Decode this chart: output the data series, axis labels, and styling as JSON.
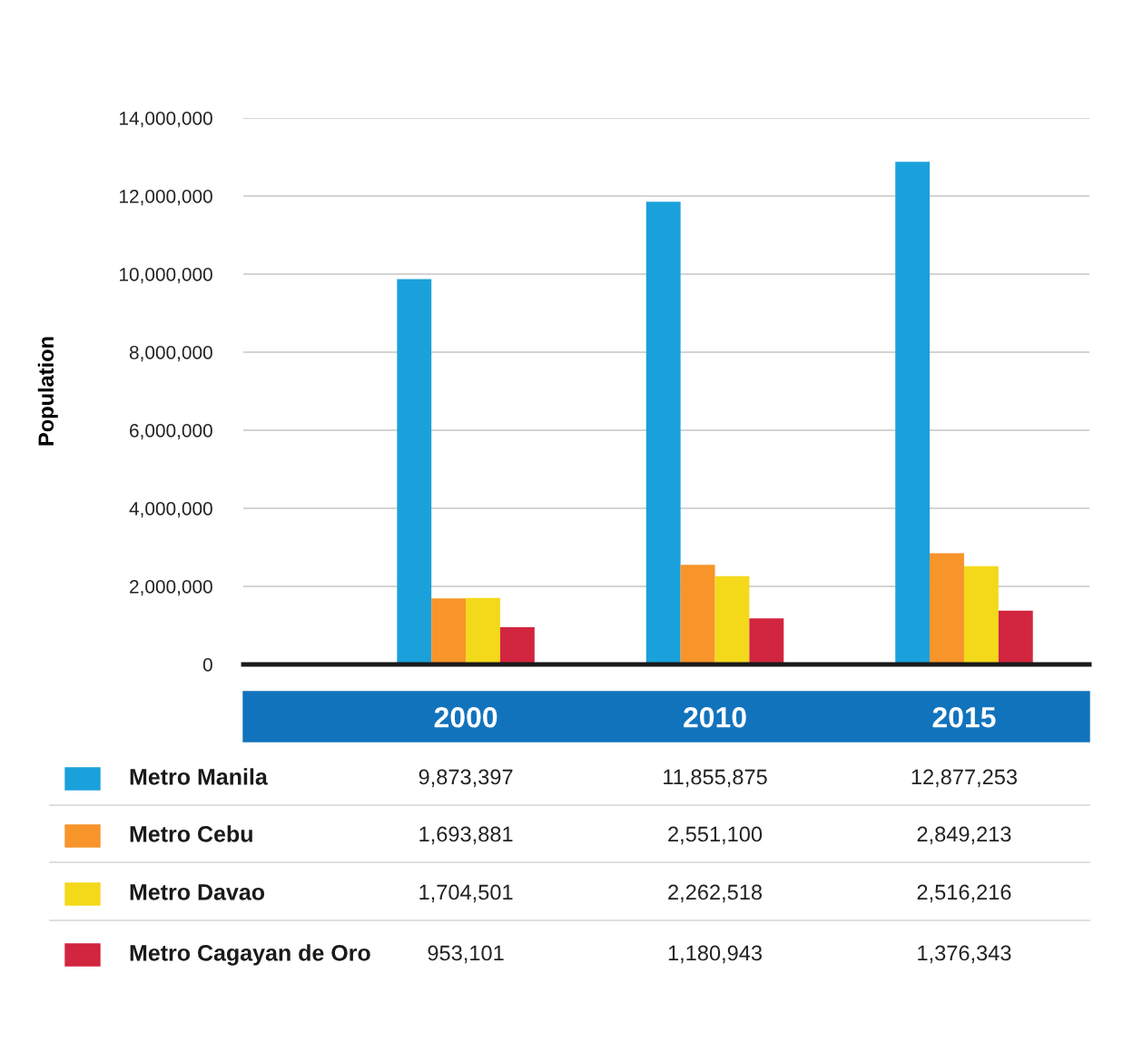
{
  "chart_data": {
    "type": "bar",
    "ylabel": "Population",
    "categories": [
      "2000",
      "2010",
      "2015"
    ],
    "series": [
      {
        "name": "Metro Manila",
        "color": "#1aa1db",
        "values": [
          9873397,
          11855875,
          12877253
        ],
        "value_labels": [
          "9,873,397",
          "11,855,875",
          "12,877,253"
        ]
      },
      {
        "name": "Metro Cebu",
        "color": "#f7942a",
        "values": [
          1693881,
          2551100,
          2849213
        ],
        "value_labels": [
          "1,693,881",
          "2,551,100",
          "2,849,213"
        ]
      },
      {
        "name": "Metro Davao",
        "color": "#f3d91a",
        "values": [
          1704501,
          2262518,
          2516216
        ],
        "value_labels": [
          "1,704,501",
          "2,262,518",
          "2,516,216"
        ]
      },
      {
        "name": "Metro Cagayan de Oro",
        "color": "#d2253f",
        "values": [
          953101,
          1180943,
          1376343
        ],
        "value_labels": [
          "953,101",
          "1,180,943",
          "1,376,343"
        ]
      }
    ],
    "ylim": [
      0,
      14000000
    ],
    "yticks": [
      0,
      {
        "value": 2000000,
        "label": "2,000,000"
      },
      {
        "value": 4000000,
        "label": "4,000,000"
      },
      {
        "value": 6000000,
        "label": "6,000,000"
      },
      {
        "value": 8000000,
        "label": "8,000,000"
      },
      {
        "value": 10000000,
        "label": "10,000,000"
      },
      {
        "value": 12000000,
        "label": "12,000,000"
      },
      {
        "value": 14000000,
        "label": "14,000,000"
      }
    ],
    "grid": "y",
    "legend": "bottom"
  }
}
